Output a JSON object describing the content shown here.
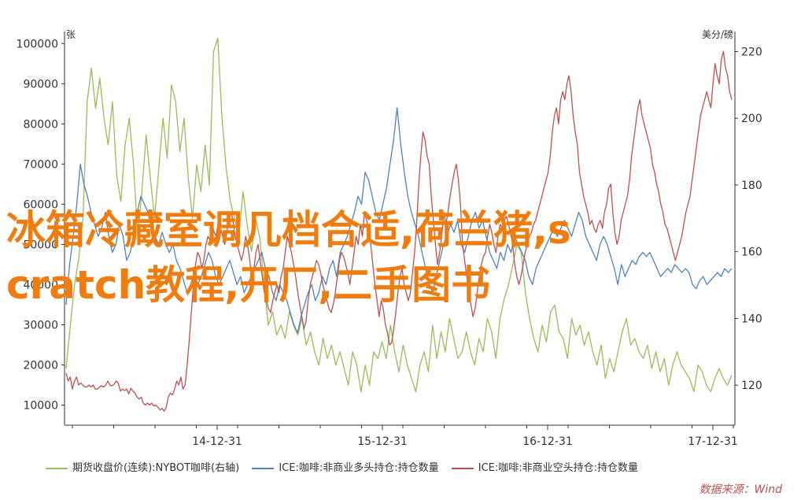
{
  "chart_data": {
    "type": "line",
    "left_axis_label": "张",
    "right_axis_label": "美分/磅",
    "left_ticks": [
      "100000",
      "90000",
      "80000",
      "70000",
      "60000",
      "50000",
      "40000",
      "30000",
      "20000",
      "10000"
    ],
    "right_ticks": [
      "220",
      "200",
      "180",
      "160",
      "140",
      "120"
    ],
    "x_ticks": [
      "14-12-31",
      "15-12-31",
      "16-12-31",
      "17-12-31"
    ],
    "ylim_left": [
      5000,
      103000
    ],
    "ylim_right": [
      108,
      226
    ],
    "grid": false,
    "legend_position": "bottom",
    "series": [
      {
        "name": "期货收盘价(连续):NYBOT咖啡(右轴)",
        "axis": "right",
        "color": "#9bbb59",
        "values": [
          125,
          138,
          150,
          158,
          170,
          205,
          215,
          203,
          212,
          200,
          192,
          205,
          183,
          175,
          192,
          200,
          186,
          165,
          178,
          195,
          182,
          170,
          185,
          200,
          188,
          210,
          205,
          190,
          200,
          182,
          170,
          186,
          178,
          192,
          180,
          220,
          224,
          200,
          185,
          175,
          170,
          165,
          178,
          168,
          160,
          170,
          164,
          150,
          138,
          142,
          135,
          138,
          134,
          142,
          138,
          135,
          140,
          132,
          136,
          130,
          126,
          134,
          128,
          132,
          126,
          130,
          125,
          120,
          130,
          126,
          118,
          126,
          120,
          130,
          128,
          133,
          128,
          138,
          130,
          124,
          132,
          126,
          122,
          118,
          126,
          130,
          124,
          138,
          128,
          136,
          130,
          140,
          134,
          128,
          130,
          136,
          130,
          126,
          134,
          130,
          140,
          136,
          128,
          140,
          146,
          150,
          156,
          162,
          160,
          148,
          140,
          134,
          130,
          138,
          133,
          142,
          144,
          136,
          134,
          128,
          140,
          135,
          138,
          132,
          136,
          130,
          126,
          132,
          122,
          128,
          124,
          130,
          136,
          140,
          132,
          134,
          130,
          128,
          132,
          125,
          130,
          124,
          128,
          120,
          126,
          130,
          126,
          124,
          122,
          118,
          126,
          124,
          120,
          118,
          122,
          125,
          122,
          120,
          123
        ]
      },
      {
        "name": "ICE:咖啡:非商业多头持仓:持仓数量",
        "axis": "left",
        "color": "#4f81bd",
        "values": [
          35000,
          45000,
          52000,
          60000,
          70000,
          65000,
          62000,
          58000,
          55000,
          52000,
          54000,
          58000,
          52000,
          48000,
          50000,
          55000,
          52000,
          46000,
          48000,
          52000,
          58000,
          62000,
          60000,
          58000,
          55000,
          52000,
          50000,
          53000,
          50000,
          48000,
          50000,
          46000,
          44000,
          41000,
          38000,
          40000,
          43000,
          40000,
          42000,
          45000,
          48000,
          46000,
          42000,
          40000,
          42000,
          44000,
          46000,
          43000,
          40000,
          42000,
          38000,
          40000,
          42000,
          44000,
          46000,
          48000,
          44000,
          42000,
          38000,
          36000,
          40000,
          38000,
          36000,
          33000,
          30000,
          28000,
          32000,
          35000,
          38000,
          40000,
          36000,
          38000,
          42000,
          40000,
          44000,
          46000,
          42000,
          48000,
          50000,
          52000,
          55000,
          58000,
          62000,
          60000,
          68000,
          66000,
          62000,
          58000,
          56000,
          60000,
          64000,
          70000,
          76000,
          84000,
          75000,
          68000,
          62000,
          58000,
          55000,
          52000,
          48000,
          44000,
          40000,
          38000,
          42000,
          46000,
          50000,
          52000,
          55000,
          53000,
          56000,
          50000,
          48000,
          52000,
          56000,
          58000,
          54000,
          56000,
          52000,
          48000,
          46000,
          44000,
          48000,
          46000,
          50000,
          48000,
          52000,
          50000,
          48000,
          46000,
          42000,
          40000,
          44000,
          46000,
          48000,
          50000,
          52000,
          54000,
          52000,
          54000,
          56000,
          54000,
          52000,
          55000,
          58000,
          56000,
          52000,
          50000,
          48000,
          46000,
          50000,
          52000,
          50000,
          47000,
          44000,
          40000,
          45000,
          42000,
          44000,
          46000,
          45000,
          47000,
          48000,
          47000,
          48000,
          46000,
          44000,
          42000,
          43000,
          44000,
          43000,
          45000,
          44000,
          43000,
          44000,
          43000,
          40000,
          39000,
          41000,
          42000,
          40000,
          41000,
          42000,
          43000,
          42000,
          44000,
          43000,
          44000
        ]
      },
      {
        "name": "ICE:咖啡:非商业空头持仓:持仓数量",
        "axis": "left",
        "color": "#c0504d",
        "values": [
          18000,
          16000,
          17000,
          14000,
          16000,
          17000,
          15000,
          15500,
          15000,
          14500,
          14500,
          15000,
          14500,
          15000,
          14000,
          14000,
          14500,
          14800,
          14500,
          15000,
          16000,
          15000,
          14800,
          15200,
          16000,
          15500,
          13500,
          14000,
          13600,
          14000,
          12800,
          14200,
          13500,
          13000,
          12000,
          11500,
          12000,
          10500,
          10000,
          10500,
          10000,
          10500,
          9800,
          10000,
          9500,
          8800,
          9200,
          8500,
          9500,
          12000,
          13000,
          12500,
          14000,
          16000,
          15000,
          17000,
          14000,
          15000,
          20000,
          26000,
          33000,
          40000,
          45000,
          48000,
          47000,
          44000,
          46000,
          50000,
          52000,
          51000,
          55000,
          53000,
          52000,
          56000,
          54000,
          52000,
          50000,
          53000,
          56000,
          58000,
          56000,
          52000,
          50000,
          48000,
          46000,
          48000,
          52000,
          50000,
          46000,
          42000,
          44000,
          48000,
          50000,
          46000,
          42000,
          38000,
          36000,
          34000,
          33000,
          36000,
          38000,
          40000,
          38000,
          42000,
          44000,
          48000,
          52000,
          50000,
          48000,
          45000,
          42000,
          38000,
          35000,
          32000,
          29000,
          31000,
          36000,
          40000,
          42000,
          44000,
          46000,
          45000,
          43000,
          40000,
          38000,
          36000,
          34000,
          33000,
          35000,
          38000,
          42000,
          46000,
          48000,
          47000,
          45000,
          43000,
          40000,
          44000,
          48000,
          52000,
          50000,
          55000,
          52000,
          58000,
          56000,
          54000,
          50000,
          45000,
          40000,
          36000,
          32000,
          36000,
          34000,
          30000,
          28000,
          25000,
          25500,
          29000,
          33000,
          38000,
          42000,
          44000,
          40000,
          38000,
          36000,
          38000,
          43000,
          48000,
          55000,
          65000,
          72000,
          78000,
          76000,
          72000,
          70000,
          62000,
          56000,
          50000,
          45000,
          48000,
          52000,
          58000,
          55000,
          58000,
          62000,
          65000,
          68000,
          70000,
          66000,
          60000,
          50000,
          46000,
          42000,
          38000,
          35000,
          32000,
          34000,
          38000,
          42000,
          45000,
          47000,
          48000,
          52000,
          55000,
          53000,
          50000,
          48000,
          52000,
          55000,
          54000,
          56000,
          57000,
          55000,
          53000,
          50000,
          45000,
          42000,
          40000,
          42000,
          45000,
          48000,
          50000,
          52000,
          53000,
          55000,
          56000,
          58000,
          60000,
          62000,
          64000,
          66000,
          68000,
          72000,
          78000,
          82000,
          84000,
          80000,
          86000,
          88000,
          86000,
          90000,
          92000,
          88000,
          82000,
          78000,
          75000,
          68000,
          65000,
          62000,
          60000,
          58000,
          55000,
          56000,
          54000,
          53000,
          55000,
          56000,
          54000,
          58000,
          60000,
          64000,
          65000,
          58000,
          53000,
          50000,
          52000,
          56000,
          58000,
          60000,
          62000,
          66000,
          72000,
          76000,
          80000,
          84000,
          86000,
          82000,
          80000,
          78000,
          76000,
          74000,
          70000,
          68000,
          65000,
          63000,
          60000,
          58000,
          55000,
          54000,
          52000,
          50000,
          48000,
          46000,
          48000,
          50000,
          52000,
          55000,
          58000,
          60000,
          62000,
          66000,
          70000,
          74000,
          78000,
          82000,
          84000,
          86000,
          88000,
          86000,
          84000,
          90000,
          95000,
          92000,
          90000,
          96000,
          98000,
          94000,
          92000,
          88000,
          86000
        ]
      }
    ]
  },
  "overlay": {
    "line1": "冰箱冷藏室调几档合适,荷兰猪,s",
    "line2": "cratch教程,开厂,二手图书"
  },
  "legend": [
    {
      "label": "期货收盘价(连续):NYBOT咖啡(右轴)",
      "color": "#9bbb59"
    },
    {
      "label": "ICE:咖啡:非商业多头持仓:持仓数量",
      "color": "#4f81bd"
    },
    {
      "label": "ICE:咖啡:非商业空头持仓:持仓数量",
      "color": "#c0504d"
    }
  ],
  "source": "数据来源：Wind"
}
